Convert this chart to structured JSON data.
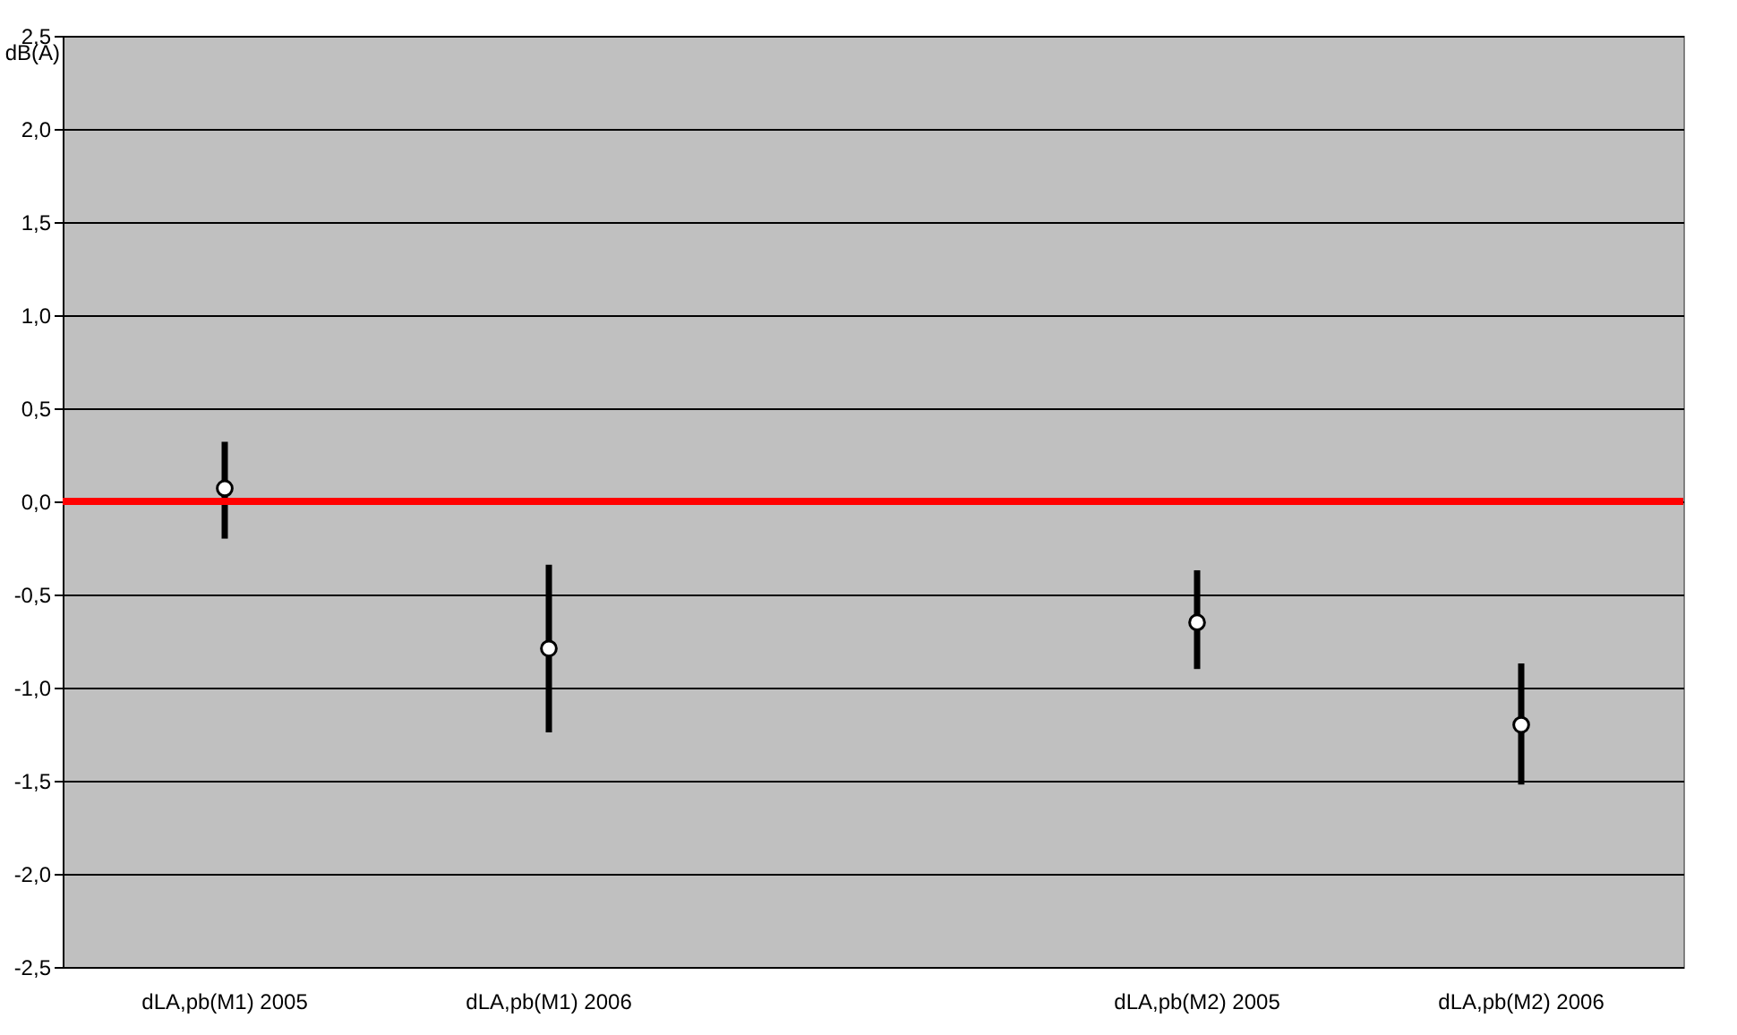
{
  "chart_data": {
    "type": "scatter",
    "ylabel": "dB(A)",
    "categories": [
      "dLA,pb(M1) 2005",
      "dLA,pb(M1) 2006",
      null,
      "dLA,pb(M2) 2005",
      "dLA,pb(M2) 2006"
    ],
    "values": [
      0.07,
      -0.79,
      null,
      -0.65,
      -1.2
    ],
    "errors": [
      [
        -0.2,
        0.32
      ],
      [
        -1.24,
        -0.34
      ],
      null,
      [
        -0.9,
        -0.37
      ],
      [
        -1.52,
        -0.87
      ]
    ],
    "color": "#ffffff",
    "marker": "circle",
    "ylim": [
      -2.5,
      2.5
    ],
    "yticks": [
      {
        "value": -2.5,
        "label": "-2,5"
      },
      {
        "value": -2.0,
        "label": "-2,0"
      },
      {
        "value": -1.5,
        "label": "-1,5"
      },
      {
        "value": -1.0,
        "label": "-1,0"
      },
      {
        "value": -0.5,
        "label": "-0,5"
      },
      {
        "value": 0,
        "label": "0,0"
      },
      {
        "value": 0.5,
        "label": "0,5"
      },
      {
        "value": 1.0,
        "label": "1,0"
      },
      {
        "value": 1.5,
        "label": "1,5"
      },
      {
        "value": 2.0,
        "label": "2,0"
      },
      {
        "value": 2.5,
        "label": "2,5"
      }
    ],
    "ref_lines": [
      {
        "axis": "y",
        "value": 0,
        "color": "#ff0000"
      }
    ],
    "grid": "y"
  }
}
